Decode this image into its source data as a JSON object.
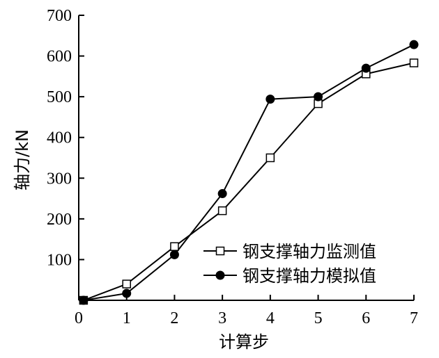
{
  "chart_data": {
    "type": "line",
    "xlabel": "计算步",
    "ylabel": "轴力/kN",
    "xlim": [
      0,
      7
    ],
    "ylim": [
      0,
      700
    ],
    "x_ticks": [
      "0",
      "1",
      "2",
      "3",
      "4",
      "5",
      "6",
      "7"
    ],
    "y_ticks": [
      "100",
      "200",
      "300",
      "400",
      "500",
      "600",
      "700"
    ],
    "grid": false,
    "legend_position": "lower-right",
    "series": [
      {
        "name": "钢支撑轴力监测值",
        "marker": "open-square",
        "color": "#000000",
        "x": [
          0.1,
          1,
          2,
          3,
          4,
          5,
          6,
          7
        ],
        "y": [
          0,
          40,
          132,
          220,
          350,
          483,
          556,
          583
        ]
      },
      {
        "name": "钢支撑轴力模拟值",
        "marker": "filled-circle",
        "color": "#000000",
        "x": [
          0.1,
          1,
          2,
          3,
          4,
          5,
          6,
          7
        ],
        "y": [
          0,
          17,
          112,
          262,
          494,
          500,
          570,
          628
        ]
      }
    ]
  }
}
